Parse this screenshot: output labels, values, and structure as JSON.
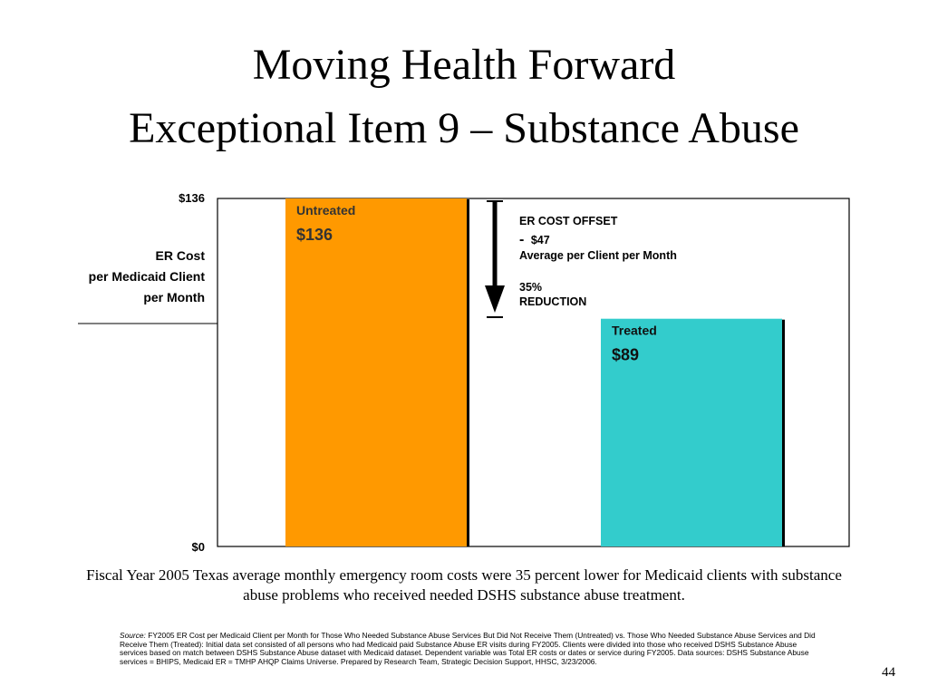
{
  "title_line1": "Moving Health Forward",
  "title_line2": "Exceptional Item 9 – Substance Abuse",
  "chart_data": {
    "type": "bar",
    "ylabel": [
      "ER Cost",
      "per Medicaid Client",
      "per Month"
    ],
    "ylim": [
      0,
      136
    ],
    "yticks": [
      "$136",
      "$0"
    ],
    "categories": [
      "Untreated",
      "Treated"
    ],
    "values": [
      136,
      89
    ],
    "value_labels": [
      "$136",
      "$89"
    ],
    "colors": [
      "#FF9900",
      "#33CCCC"
    ],
    "annotation": {
      "line1": "ER COST OFFSET",
      "line2_dash": "-",
      "line2_value": "$47",
      "line3": "Average per Client per Month",
      "line4": "35%",
      "line5": "REDUCTION"
    },
    "grid": false
  },
  "caption": "Fiscal Year 2005 Texas average monthly emergency room costs were 35 percent lower for Medicaid clients with substance abuse problems who received needed DSHS substance abuse treatment.",
  "source": {
    "label": "Source:",
    "text": " FY2005 ER Cost per Medicaid Client per Month for Those Who Needed Substance Abuse Services But Did Not Receive Them (Untreated) vs. Those Who Needed Substance Abuse Services and Did Receive Them (Treated): Initial data set consisted of all persons who had Medicaid paid Substance Abuse ER visits during FY2005. Clients were divided into those who received DSHS Substance Abuse services based on match between DSHS Substance Abuse dataset with Medicaid dataset. Dependent variable was Total ER costs or dates or service during FY2005. Data sources: DSHS Substance Abuse services = BHIPS, Medicaid ER = TMHP AHQP Claims Universe. Prepared by Research Team, Strategic Decision Support, HHSC, 3/23/2006."
  },
  "page_number": "44"
}
